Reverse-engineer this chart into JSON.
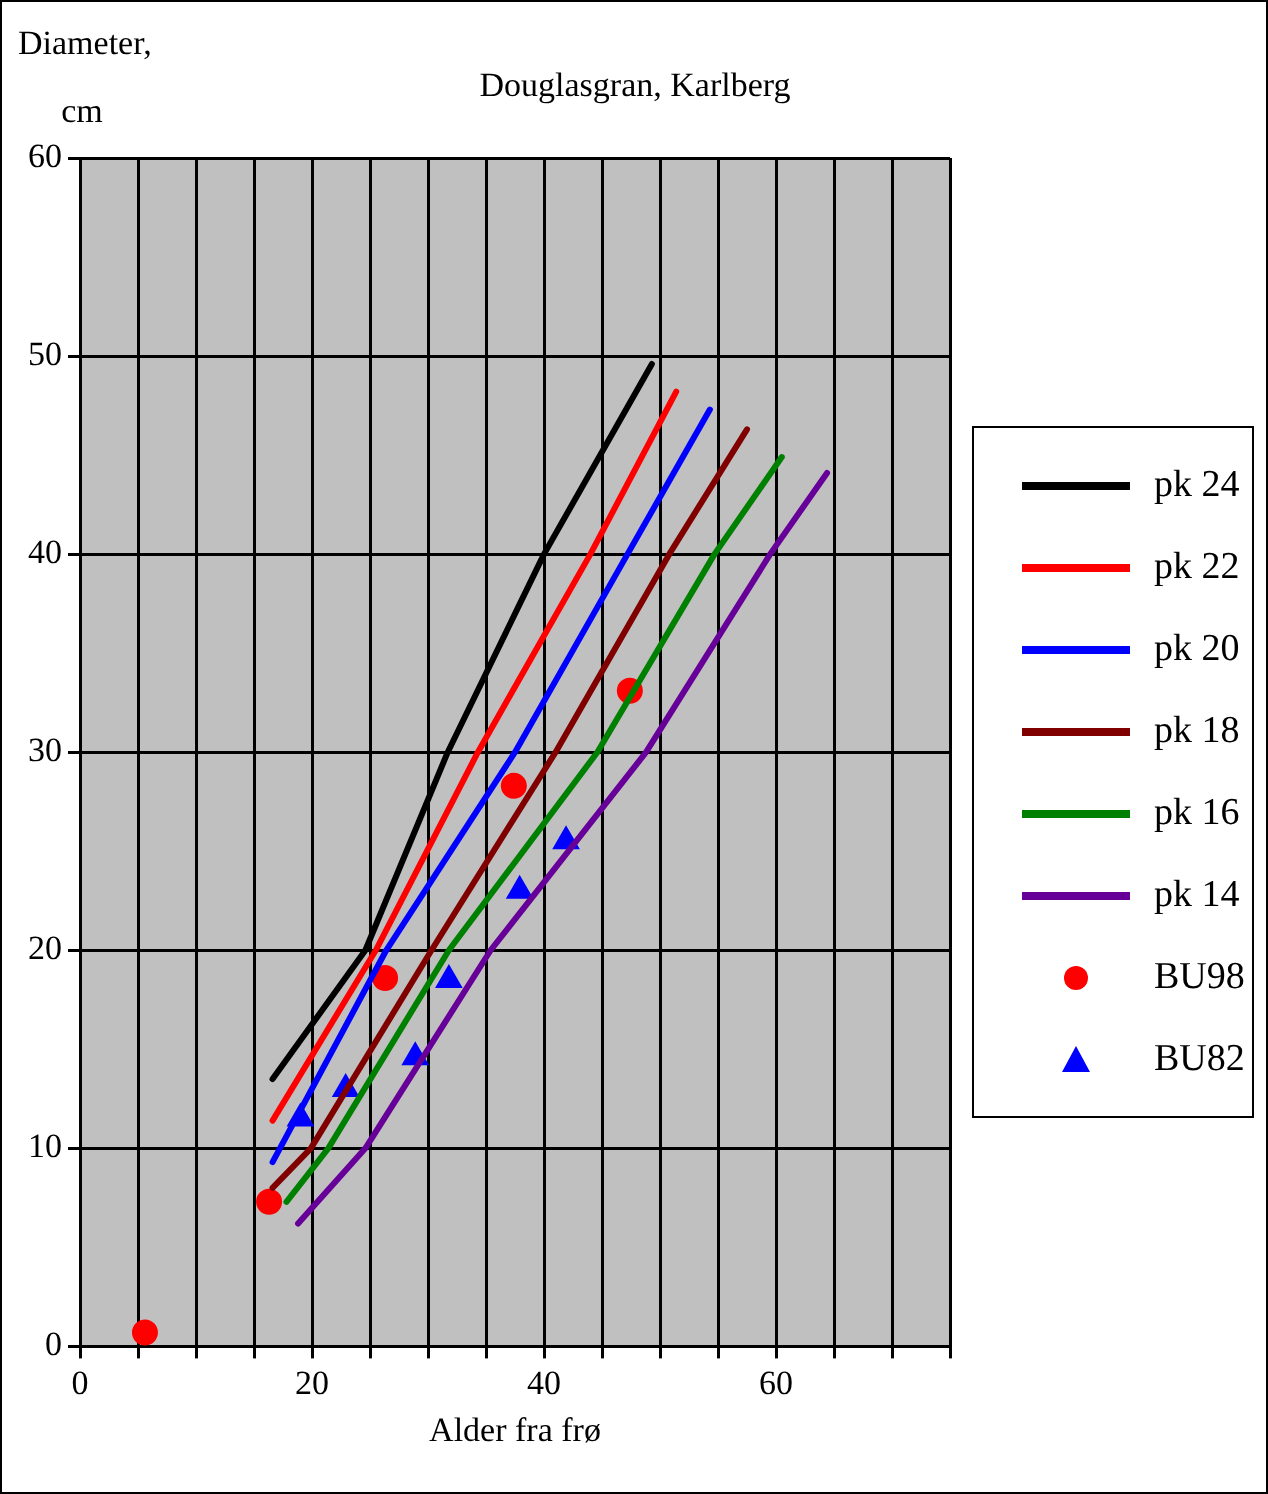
{
  "chart_data": {
    "type": "line",
    "title": "Douglasgran, Karlberg",
    "xlabel": "Alder fra frø",
    "ylabel": "Diameter, cm",
    "xlim": [
      0,
      75
    ],
    "ylim": [
      0,
      60
    ],
    "xticks": [
      0,
      {
        "value": 5,
        "label": null
      },
      {
        "value": 10,
        "label": null
      },
      {
        "value": 15,
        "label": null
      },
      20,
      {
        "value": 25,
        "label": null
      },
      {
        "value": 30,
        "label": null
      },
      {
        "value": 35,
        "label": null
      },
      40,
      {
        "value": 45,
        "label": null
      },
      {
        "value": 50,
        "label": null
      },
      {
        "value": 55,
        "label": null
      },
      60,
      {
        "value": 65,
        "label": null
      },
      {
        "value": 70,
        "label": null
      },
      {
        "value": 75,
        "label": null
      }
    ],
    "yticks": [
      0,
      10,
      20,
      30,
      40,
      50,
      60
    ],
    "grid": true,
    "legend": "right",
    "line_style": "solid",
    "series": [
      {
        "name": "pk 24",
        "type": "line",
        "color": "#000000",
        "marker": "none",
        "x": [
          16.6,
          24.6,
          31.7,
          40.0,
          49.3
        ],
        "values": [
          13.5,
          20,
          30,
          40,
          49.6
        ]
      },
      {
        "name": "pk 22",
        "type": "line",
        "color": "#ff0000",
        "marker": "none",
        "x": [
          16.6,
          25.5,
          34.3,
          44.0,
          51.4
        ],
        "values": [
          11.4,
          20,
          30,
          40,
          48.2
        ]
      },
      {
        "name": "pk 20",
        "type": "line",
        "color": "#0000ff",
        "marker": "none",
        "x": [
          16.6,
          26.4,
          37.5,
          47.2,
          54.3
        ],
        "values": [
          9.3,
          20,
          30,
          40,
          47.3
        ]
      },
      {
        "name": "pk 18",
        "type": "line",
        "color": "#800000",
        "marker": "none",
        "x": [
          16.6,
          19.9,
          30.3,
          41.0,
          50.8,
          57.5
        ],
        "values": [
          8.0,
          10,
          20,
          30,
          40,
          46.3
        ]
      },
      {
        "name": "pk 16",
        "type": "line",
        "color": "#008000",
        "marker": "none",
        "x": [
          17.8,
          21.4,
          31.8,
          44.6,
          54.7,
          60.5
        ],
        "values": [
          7.3,
          10,
          20,
          30,
          40,
          44.9
        ]
      },
      {
        "name": "pk 14",
        "type": "line",
        "color": "#660099",
        "marker": "none",
        "x": [
          18.8,
          24.6,
          35.4,
          48.8,
          59.5,
          64.4
        ],
        "values": [
          6.2,
          10,
          20,
          30,
          40,
          44.1
        ]
      },
      {
        "name": "BU98",
        "type": "scatter",
        "color": "#ff0000",
        "marker": "circle",
        "x": [
          5.6,
          16.3,
          26.3,
          37.4,
          47.4
        ],
        "values": [
          0.7,
          7.3,
          18.6,
          28.3,
          33.1
        ]
      },
      {
        "name": "BU82",
        "type": "scatter",
        "color": "#0000ff",
        "marker": "triangle",
        "x": [
          19.0,
          22.9,
          28.9,
          31.8,
          37.9,
          41.9
        ],
        "values": [
          11.5,
          13.0,
          14.6,
          18.5,
          23.0,
          25.5
        ]
      }
    ]
  }
}
